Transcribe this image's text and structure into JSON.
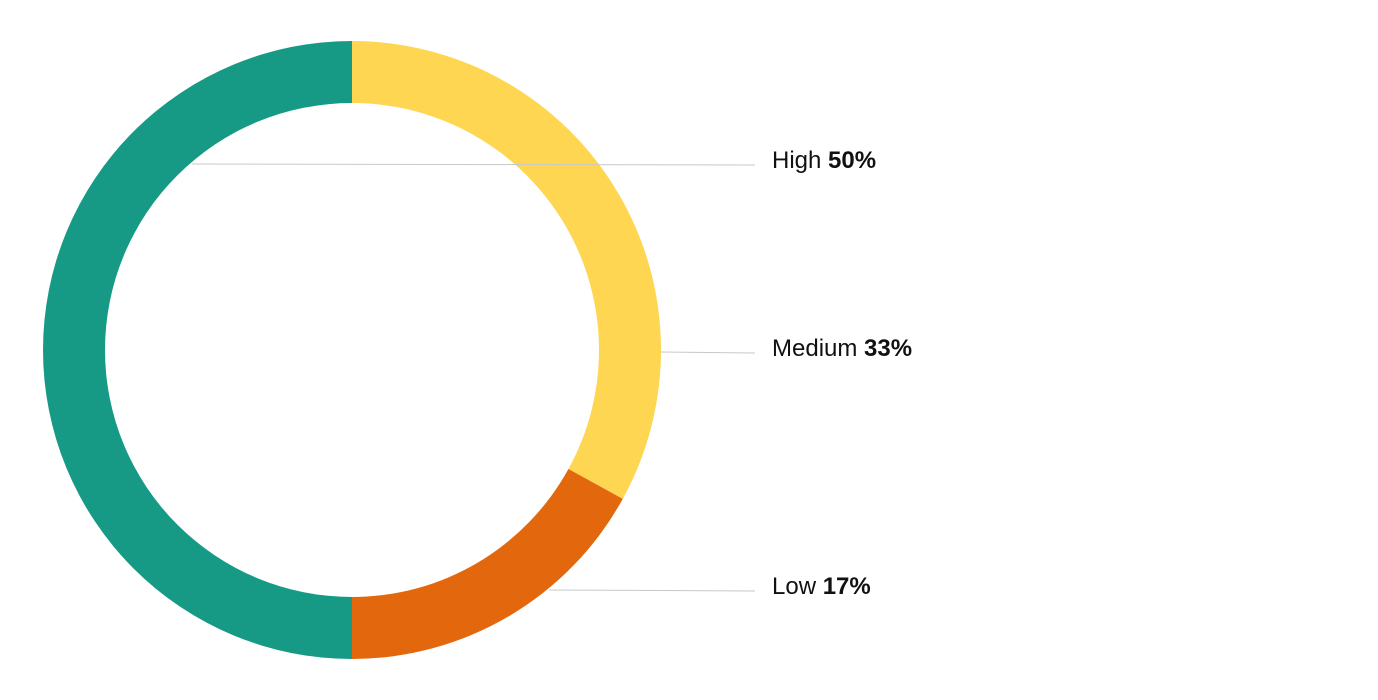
{
  "chart_data": {
    "type": "donut",
    "categories": [
      "High",
      "Medium",
      "Low"
    ],
    "values": [
      50,
      33,
      17
    ],
    "value_labels": [
      "50%",
      "33%",
      "17%"
    ],
    "colors": [
      "#179a85",
      "#fed651",
      "#e3670c"
    ]
  }
}
